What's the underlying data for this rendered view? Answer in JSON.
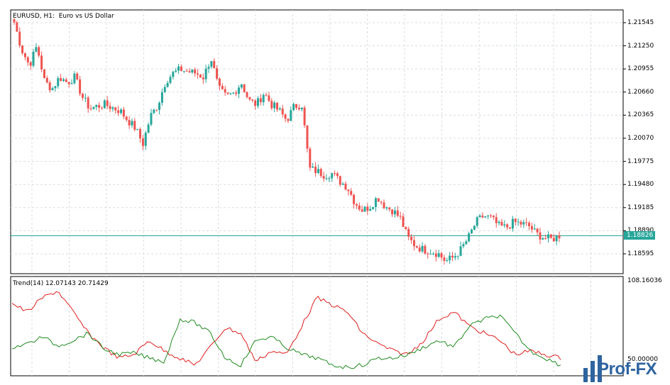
{
  "chart": {
    "symbol_label": "EURUSD, H1:  Euro vs US Dollar",
    "price_labels": [
      "1.21545",
      "1.21250",
      "1.20955",
      "1.20660",
      "1.20365",
      "1.20070",
      "1.19775",
      "1.19480",
      "1.19185",
      "1.18890",
      "1.18595"
    ],
    "current_price": "1.18826",
    "colors": {
      "bull": "#26a69a",
      "bear": "#ef5350",
      "grid": "#d8dde2",
      "current_line": "#26a69a",
      "trend_up": "#1f8a1f",
      "trend_down": "#e01e1e"
    }
  },
  "indicator": {
    "label": "Trend(14) 12.07143 20.71429",
    "scale_top": "108.16036",
    "scale_mid": "50.00000"
  },
  "watermark": {
    "text": "Prof-FX"
  },
  "chart_data": {
    "type": "candlestick",
    "symbol": "EURUSD",
    "timeframe": "H1",
    "ylim": [
      1.1845,
      1.217
    ],
    "approx_close_path": [
      1.2155,
      1.212,
      1.21,
      1.2125,
      1.208,
      1.207,
      1.2085,
      1.2078,
      1.2085,
      1.206,
      1.2045,
      1.2048,
      1.205,
      1.2046,
      1.2042,
      1.203,
      1.202,
      1.2,
      1.2035,
      1.205,
      1.208,
      1.209,
      1.2095,
      1.2092,
      1.209,
      1.2085,
      1.211,
      1.207,
      1.206,
      1.2065,
      1.2078,
      1.2055,
      1.205,
      1.2065,
      1.205,
      1.2042,
      1.203,
      1.2048,
      1.205,
      1.1968,
      1.1965,
      1.196,
      1.1962,
      1.1952,
      1.1945,
      1.1925,
      1.1915,
      1.192,
      1.1932,
      1.192,
      1.1915,
      1.1905,
      1.188,
      1.187,
      1.1865,
      1.1863,
      1.186,
      1.185,
      1.1855,
      1.1865,
      1.188,
      1.19,
      1.1908,
      1.1905,
      1.1895,
      1.1893,
      1.19,
      1.1898,
      1.1895,
      1.1885,
      1.188,
      1.1878,
      1.1883
    ]
  }
}
